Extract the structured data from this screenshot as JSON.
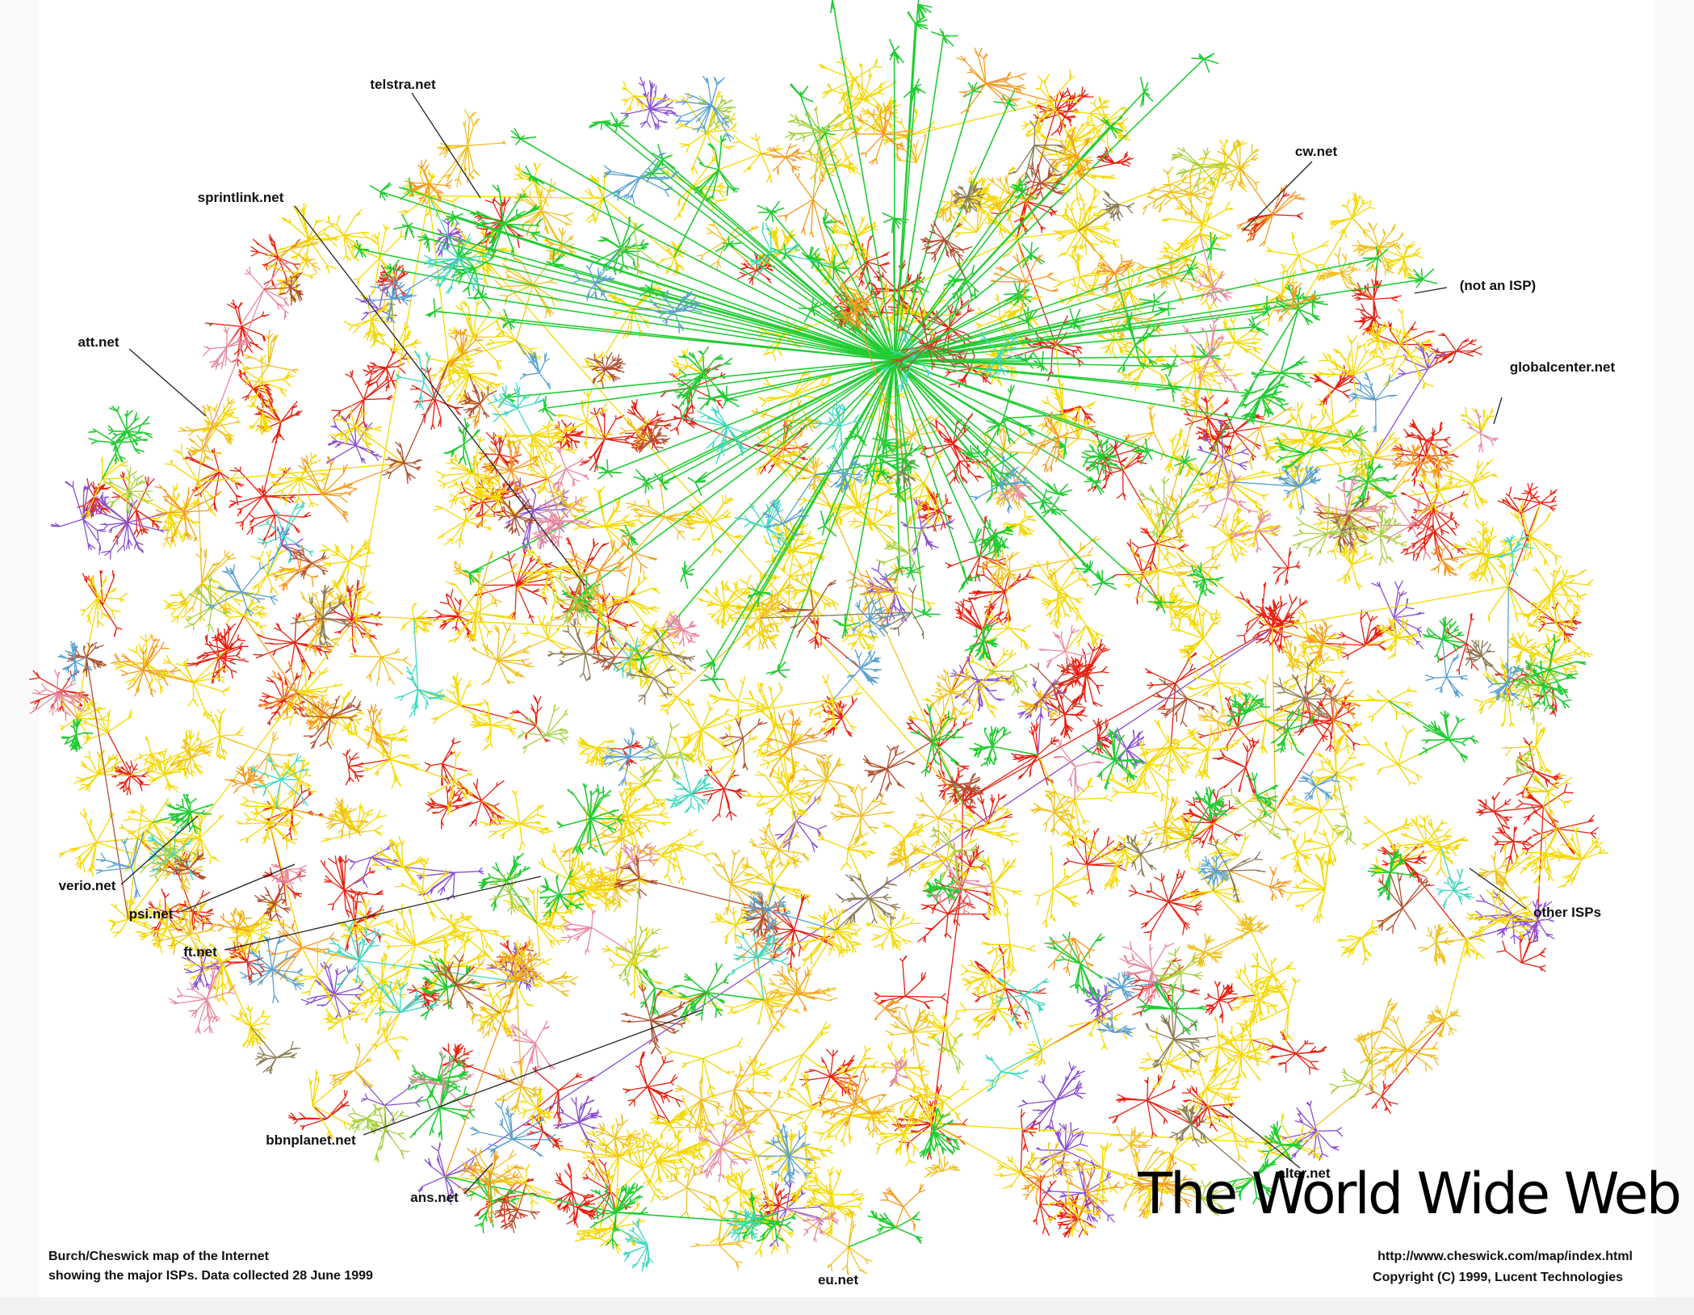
{
  "title": "The World Wide Web",
  "labels": [
    "telstra.net",
    "sprintlink.net",
    "att.net",
    "verio.net",
    "psi.net",
    "ft.net",
    "bbnplanet.net",
    "ans.net",
    "eu.net",
    "alter.net",
    "other ISPs",
    "globalcenter.net",
    "(not an ISP)",
    "cw.net"
  ],
  "caption_left": [
    "Burch/Cheswick map of the Internet",
    "showing the major ISPs.  Data collected 28 June 1999"
  ],
  "caption_right": [
    "http://www.cheswick.com/map/index.html",
    "Copyright (C) 1999, Lucent Technologies"
  ]
}
